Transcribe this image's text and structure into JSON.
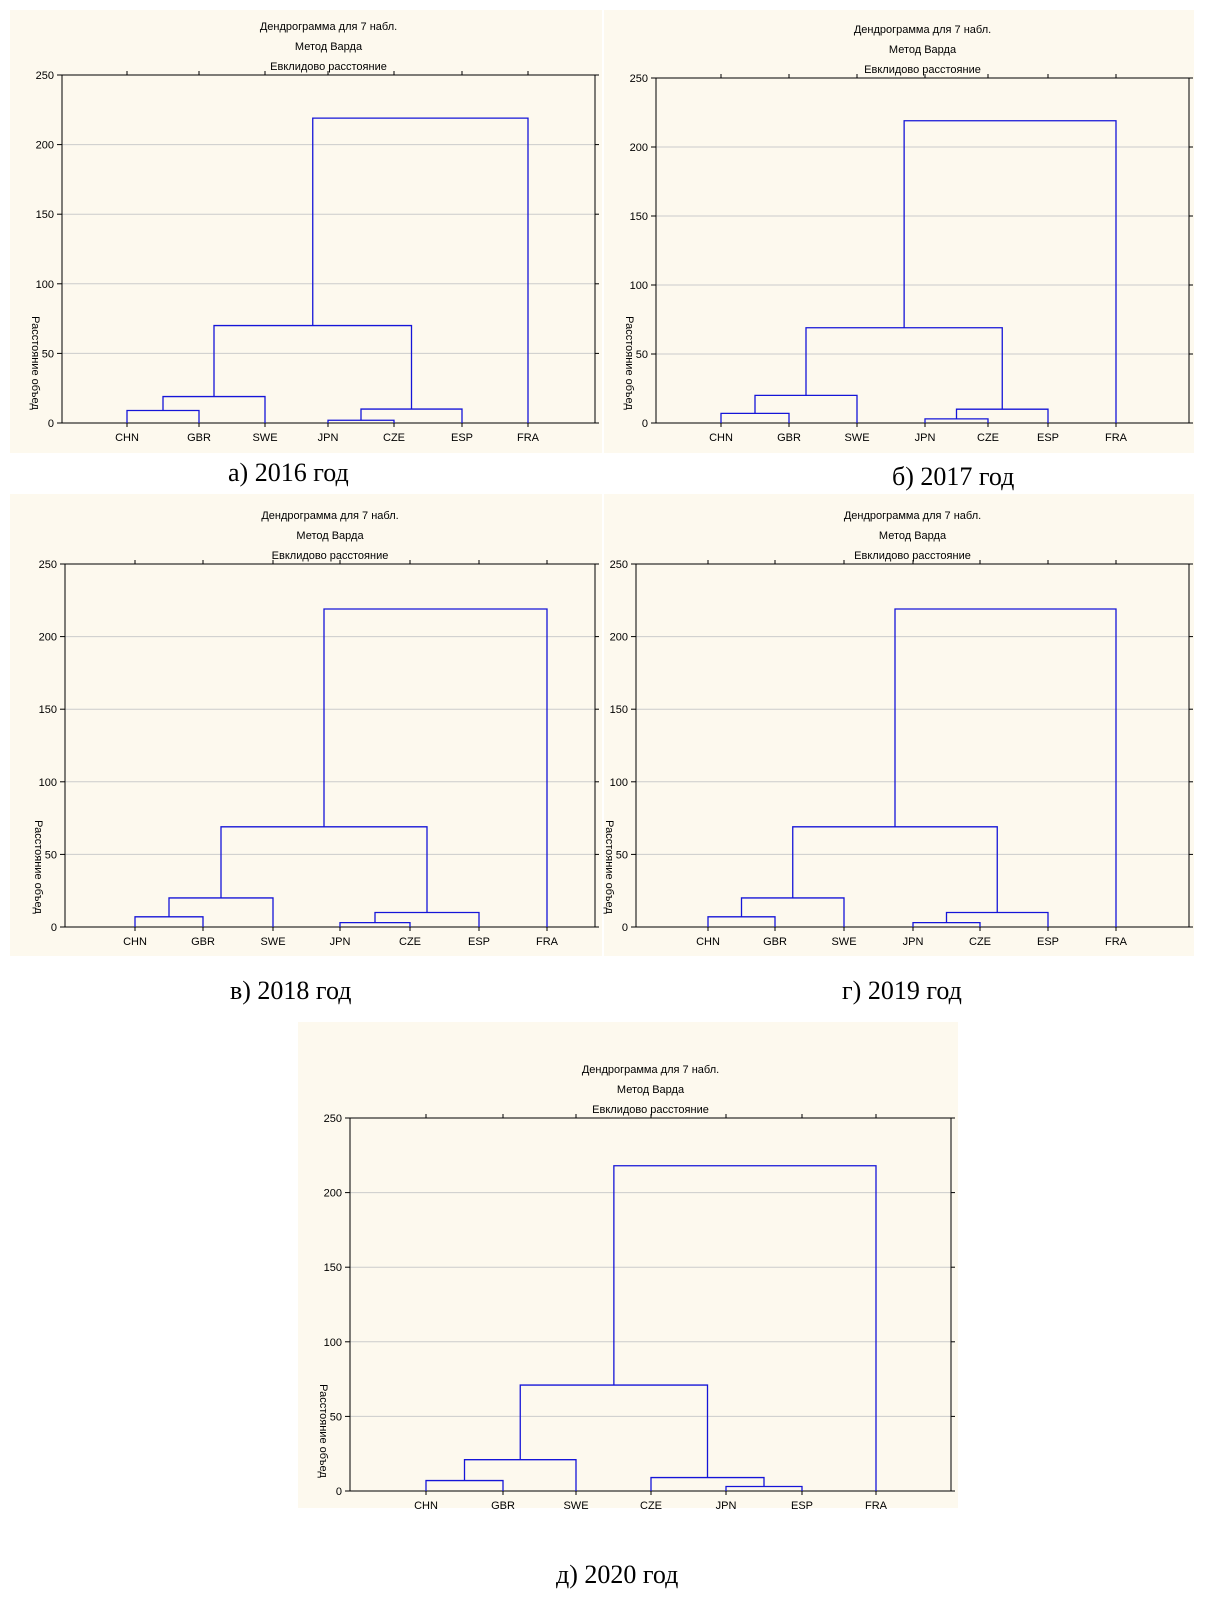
{
  "charts": [
    {
      "key": "a",
      "caption": "а) 2016 год",
      "chart_data": {
        "type": "dendrogram",
        "title_lines": [
          "Дендрограмма для 7 набл.",
          "Метод Варда",
          "Евклидово расстояние"
        ],
        "ylabel": "Расстояние объед",
        "ylim": [
          0,
          250
        ],
        "yticks": [
          0,
          50,
          100,
          150,
          200,
          250
        ],
        "grid": true,
        "leaves": [
          "CHN",
          "GBR",
          "SWE",
          "JPN",
          "CZE",
          "ESP",
          "FRA"
        ],
        "merges": [
          {
            "left": "CHN",
            "right": "GBR",
            "height": 9
          },
          {
            "left": "JPN",
            "right": "CZE",
            "height": 2
          },
          {
            "left": "JPN+CZE",
            "right": "ESP",
            "height": 10
          },
          {
            "left": "CHN+GBR",
            "right": "SWE",
            "height": 19
          },
          {
            "left": "CHN+GBR+SWE",
            "right": "JPN+CZE+ESP",
            "height": 70
          },
          {
            "left": "CHN+GBR+SWE+JPN+CZE+ESP",
            "right": "FRA",
            "height": 219
          }
        ]
      }
    },
    {
      "key": "b",
      "caption": "б) 2017 год",
      "chart_data": {
        "type": "dendrogram",
        "title_lines": [
          "Дендрограмма для 7 набл.",
          "Метод Варда",
          "Евклидово расстояние"
        ],
        "ylabel": "Расстояние объед",
        "ylim": [
          0,
          250
        ],
        "yticks": [
          0,
          50,
          100,
          150,
          200,
          250
        ],
        "grid": true,
        "leaves": [
          "CHN",
          "GBR",
          "SWE",
          "JPN",
          "CZE",
          "ESP",
          "FRA"
        ],
        "merges": [
          {
            "left": "CHN",
            "right": "GBR",
            "height": 7
          },
          {
            "left": "JPN",
            "right": "CZE",
            "height": 3
          },
          {
            "left": "JPN+CZE",
            "right": "ESP",
            "height": 10
          },
          {
            "left": "CHN+GBR",
            "right": "SWE",
            "height": 20
          },
          {
            "left": "CHN+GBR+SWE",
            "right": "JPN+CZE+ESP",
            "height": 69
          },
          {
            "left": "CHN+GBR+SWE+JPN+CZE+ESP",
            "right": "FRA",
            "height": 219
          }
        ]
      }
    },
    {
      "key": "c",
      "caption": "в) 2018 год",
      "chart_data": {
        "type": "dendrogram",
        "title_lines": [
          "Дендрограмма для 7 набл.",
          "Метод Варда",
          "Евклидово расстояние"
        ],
        "ylabel": "Расстояние объед",
        "ylim": [
          0,
          250
        ],
        "yticks": [
          0,
          50,
          100,
          150,
          200,
          250
        ],
        "grid": true,
        "leaves": [
          "CHN",
          "GBR",
          "SWE",
          "JPN",
          "CZE",
          "ESP",
          "FRA"
        ],
        "merges": [
          {
            "left": "CHN",
            "right": "GBR",
            "height": 7
          },
          {
            "left": "JPN",
            "right": "CZE",
            "height": 3
          },
          {
            "left": "JPN+CZE",
            "right": "ESP",
            "height": 10
          },
          {
            "left": "CHN+GBR",
            "right": "SWE",
            "height": 20
          },
          {
            "left": "CHN+GBR+SWE",
            "right": "JPN+CZE+ESP",
            "height": 69
          },
          {
            "left": "CHN+GBR+SWE+JPN+CZE+ESP",
            "right": "FRA",
            "height": 219
          }
        ]
      }
    },
    {
      "key": "d",
      "caption": "г) 2019 год",
      "chart_data": {
        "type": "dendrogram",
        "title_lines": [
          "Дендрограмма для 7 набл.",
          "Метод Варда",
          "Евклидово расстояние"
        ],
        "ylabel": "Расстояние объед",
        "ylim": [
          0,
          250
        ],
        "yticks": [
          0,
          50,
          100,
          150,
          200,
          250
        ],
        "grid": true,
        "leaves": [
          "CHN",
          "GBR",
          "SWE",
          "JPN",
          "CZE",
          "ESP",
          "FRA"
        ],
        "merges": [
          {
            "left": "CHN",
            "right": "GBR",
            "height": 7
          },
          {
            "left": "JPN",
            "right": "CZE",
            "height": 3
          },
          {
            "left": "JPN+CZE",
            "right": "ESP",
            "height": 10
          },
          {
            "left": "CHN+GBR",
            "right": "SWE",
            "height": 20
          },
          {
            "left": "CHN+GBR+SWE",
            "right": "JPN+CZE+ESP",
            "height": 69
          },
          {
            "left": "CHN+GBR+SWE+JPN+CZE+ESP",
            "right": "FRA",
            "height": 219
          }
        ]
      }
    },
    {
      "key": "e",
      "caption": "д) 2020 год",
      "chart_data": {
        "type": "dendrogram",
        "title_lines": [
          "Дендрограмма для 7 набл.",
          "Метод Варда",
          "Евклидово расстояние"
        ],
        "ylabel": "Расстояние объед",
        "ylim": [
          0,
          250
        ],
        "yticks": [
          0,
          50,
          100,
          150,
          200,
          250
        ],
        "grid": true,
        "leaves": [
          "CHN",
          "GBR",
          "SWE",
          "CZE",
          "JPN",
          "ESP",
          "FRA"
        ],
        "merges": [
          {
            "left": "CHN",
            "right": "GBR",
            "height": 7
          },
          {
            "left": "JPN",
            "right": "ESP",
            "height": 3
          },
          {
            "left": "CZE",
            "right": "JPN+ESP",
            "height": 9
          },
          {
            "left": "CHN+GBR",
            "right": "SWE",
            "height": 21
          },
          {
            "left": "CHN+GBR+SWE",
            "right": "CZE+JPN+ESP",
            "height": 71
          },
          {
            "left": "CHN+GBR+SWE+CZE+JPN+ESP",
            "right": "FRA",
            "height": 218
          }
        ]
      }
    }
  ],
  "colors": {
    "link": "#1515d8",
    "panel_bg": "#fdf9ee",
    "grid": "#cccccc",
    "axis": "#000000"
  }
}
